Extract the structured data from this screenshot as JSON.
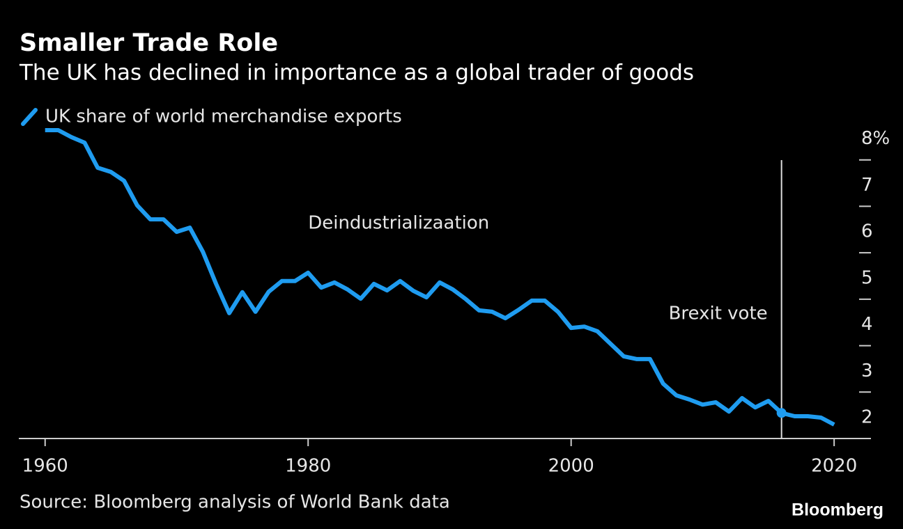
{
  "chart_data": {
    "type": "line",
    "title": "Smaller Trade Role",
    "subtitle": "The UK has declined in importance as a global trader of goods",
    "source": "Source: Bloomberg analysis of World Bank data",
    "brand": "Bloomberg",
    "x": [
      1960,
      1961,
      1962,
      1963,
      1964,
      1965,
      1966,
      1967,
      1968,
      1969,
      1970,
      1971,
      1972,
      1973,
      1974,
      1975,
      1976,
      1977,
      1978,
      1979,
      1980,
      1981,
      1982,
      1983,
      1984,
      1985,
      1986,
      1987,
      1988,
      1989,
      1990,
      1991,
      1992,
      1993,
      1994,
      1995,
      1996,
      1997,
      1998,
      1999,
      2000,
      2001,
      2002,
      2003,
      2004,
      2005,
      2006,
      2007,
      2008,
      2009,
      2010,
      2011,
      2012,
      2013,
      2014,
      2015,
      2016,
      2017,
      2018,
      2019,
      2020
    ],
    "series": [
      {
        "name": "UK share of world merchandise exports",
        "color": "#1f9cf0",
        "values": [
          8.64,
          8.64,
          8.49,
          8.37,
          7.83,
          7.74,
          7.55,
          7.02,
          6.72,
          6.72,
          6.45,
          6.54,
          6.02,
          5.33,
          4.7,
          5.15,
          4.73,
          5.16,
          5.39,
          5.39,
          5.57,
          5.25,
          5.36,
          5.21,
          5.01,
          5.33,
          5.19,
          5.39,
          5.18,
          5.04,
          5.36,
          5.21,
          5.0,
          4.76,
          4.73,
          4.59,
          4.77,
          4.97,
          4.97,
          4.73,
          4.38,
          4.41,
          4.31,
          4.04,
          3.77,
          3.71,
          3.71,
          3.18,
          2.93,
          2.84,
          2.73,
          2.78,
          2.58,
          2.87,
          2.67,
          2.81,
          2.55,
          2.48,
          2.48,
          2.45,
          2.3
        ]
      }
    ],
    "xlim": [
      1958,
      2022.8
    ],
    "xticks": [
      1960,
      1980,
      2000,
      2020
    ],
    "ylim": [
      2,
      8.7
    ],
    "yticks": [
      2,
      3,
      4,
      5,
      6,
      7,
      {
        "value": 8,
        "label": "8%"
      }
    ],
    "annotations": [
      {
        "text": "Deindustrializaation",
        "x": 1980
      },
      {
        "text": "Brexit vote",
        "x": 2016
      }
    ]
  }
}
